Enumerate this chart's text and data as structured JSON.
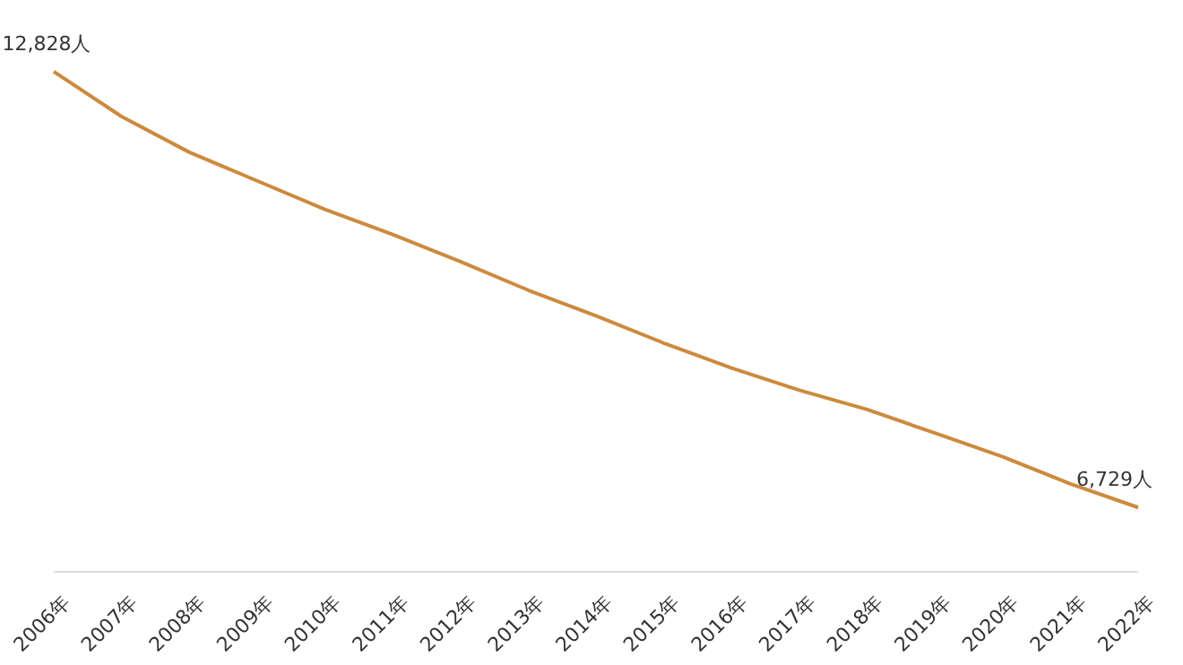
{
  "chart_data": {
    "type": "line",
    "categories": [
      "2006年",
      "2007年",
      "2008年",
      "2009年",
      "2010年",
      "2011年",
      "2012年",
      "2013年",
      "2014年",
      "2015年",
      "2016年",
      "2017年",
      "2018年",
      "2019年",
      "2020年",
      "2021年",
      "2022年"
    ],
    "series": [
      {
        "color": "#cc8a3e",
        "values": [
          12828,
          12200,
          11700,
          11300,
          10900,
          10550,
          10170,
          9770,
          9410,
          9030,
          8680,
          8370,
          8100,
          7770,
          7440,
          7060,
          6729
        ],
        "value_labels": [
          "12,828人",
          null,
          null,
          null,
          null,
          null,
          null,
          null,
          null,
          null,
          null,
          null,
          null,
          null,
          null,
          null,
          "6,729人"
        ]
      }
    ],
    "tick_labels": "x",
    "marker": "none",
    "line_style": "solid"
  }
}
